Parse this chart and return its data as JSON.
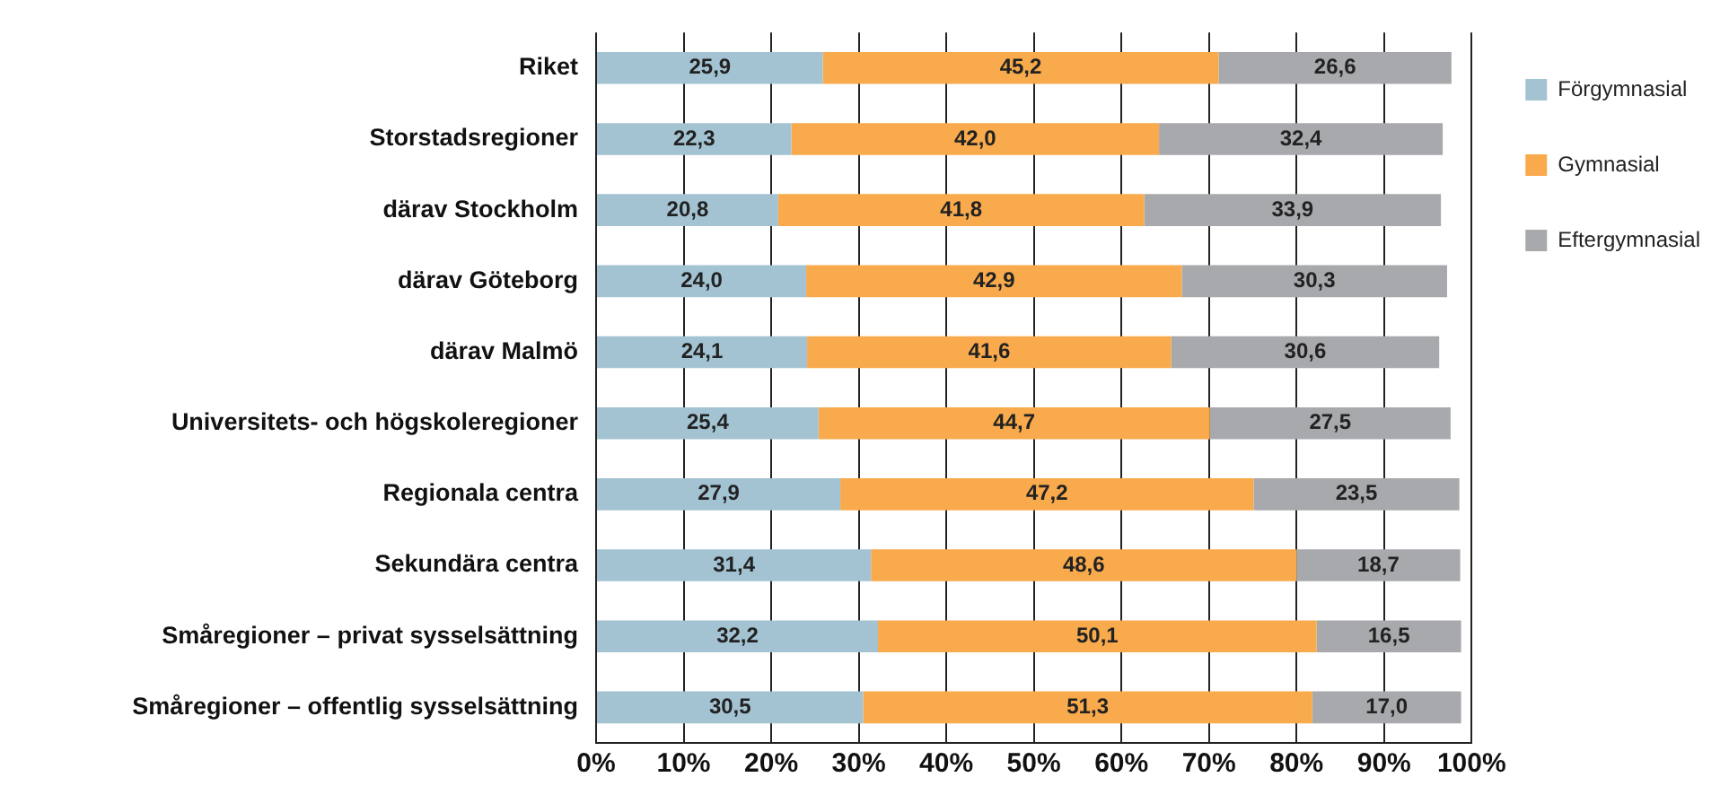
{
  "chart_data": {
    "type": "bar",
    "orientation": "horizontal",
    "stacked": true,
    "categories": [
      "Riket",
      "Storstadsregioner",
      "därav Stockholm",
      "därav Göteborg",
      "därav Malmö",
      "Universitets- och högskoleregioner",
      "Regionala centra",
      "Sekundära centra",
      "Småregioner – privat sysselsättning",
      "Småregioner – offentlig sysselsättning"
    ],
    "series": [
      {
        "name": "Förgymnasial",
        "color": "#a3c3d3",
        "values": [
          25.9,
          22.3,
          20.8,
          24.0,
          24.1,
          25.4,
          27.9,
          31.4,
          32.2,
          30.5
        ],
        "value_labels": [
          "25,9",
          "22,3",
          "20,8",
          "24,0",
          "24,1",
          "25,4",
          "27,9",
          "31,4",
          "32,2",
          "30,5"
        ]
      },
      {
        "name": "Gymnasial",
        "color": "#f8aa4c",
        "values": [
          45.2,
          42.0,
          41.8,
          42.9,
          41.6,
          44.7,
          47.2,
          48.6,
          50.1,
          51.3
        ],
        "value_labels": [
          "45,2",
          "42,0",
          "41,8",
          "42,9",
          "41,6",
          "44,7",
          "47,2",
          "48,6",
          "50,1",
          "51,3"
        ]
      },
      {
        "name": "Eftergymnasial",
        "color": "#a8a9ac",
        "values": [
          26.6,
          32.4,
          33.9,
          30.3,
          30.6,
          27.5,
          23.5,
          18.7,
          16.5,
          17.0
        ],
        "value_labels": [
          "26,6",
          "32,4",
          "33,9",
          "30,3",
          "30,6",
          "27,5",
          "23,5",
          "18,7",
          "16,5",
          "17,0"
        ]
      }
    ],
    "xlim": [
      0,
      100
    ],
    "xticks": [
      {
        "value": 0,
        "label": "0%"
      },
      {
        "value": 10,
        "label": "10%"
      },
      {
        "value": 20,
        "label": "20%"
      },
      {
        "value": 30,
        "label": "30%"
      },
      {
        "value": 40,
        "label": "40%"
      },
      {
        "value": 50,
        "label": "50%"
      },
      {
        "value": 60,
        "label": "60%"
      },
      {
        "value": 70,
        "label": "70%"
      },
      {
        "value": 80,
        "label": "80%"
      },
      {
        "value": 90,
        "label": "90%"
      },
      {
        "value": 100,
        "label": "100%"
      }
    ],
    "grid": "x",
    "legend": "top right"
  }
}
